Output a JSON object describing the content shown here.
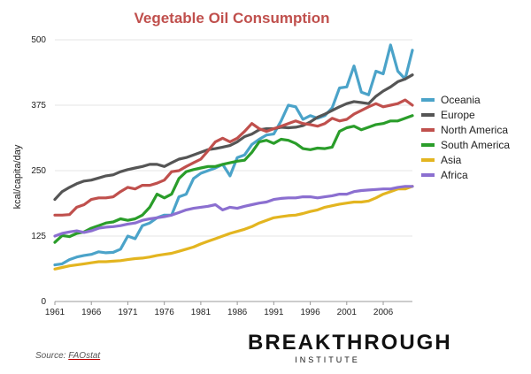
{
  "chart_data": {
    "type": "line",
    "title": "Vegetable Oil Consumption",
    "ylabel": "kcal/capita/day",
    "xlabel": "",
    "xlim": [
      1961,
      2010
    ],
    "ylim": [
      0,
      500
    ],
    "x_ticks": [
      1961,
      1966,
      1971,
      1976,
      1981,
      1986,
      1991,
      1996,
      2001,
      2006
    ],
    "y_ticks": [
      0,
      125,
      250,
      375,
      500
    ],
    "grid": true,
    "legend_position": "right",
    "x": [
      1961,
      1962,
      1963,
      1964,
      1965,
      1966,
      1967,
      1968,
      1969,
      1970,
      1971,
      1972,
      1973,
      1974,
      1975,
      1976,
      1977,
      1978,
      1979,
      1980,
      1981,
      1982,
      1983,
      1984,
      1985,
      1986,
      1987,
      1988,
      1989,
      1990,
      1991,
      1992,
      1993,
      1994,
      1995,
      1996,
      1997,
      1998,
      1999,
      2000,
      2001,
      2002,
      2003,
      2004,
      2005,
      2006,
      2007,
      2008,
      2009,
      2010
    ],
    "series": [
      {
        "name": "Oceania",
        "color": "#4ba3c9",
        "values": [
          70,
          72,
          80,
          85,
          88,
          90,
          95,
          93,
          94,
          100,
          125,
          120,
          145,
          150,
          160,
          165,
          165,
          200,
          205,
          235,
          245,
          250,
          255,
          262,
          240,
          275,
          280,
          300,
          310,
          318,
          320,
          345,
          375,
          372,
          348,
          355,
          350,
          355,
          370,
          408,
          410,
          450,
          400,
          395,
          440,
          435,
          490,
          440,
          425,
          480
        ]
      },
      {
        "name": "Europe",
        "color": "#555555",
        "values": [
          195,
          210,
          218,
          225,
          230,
          232,
          236,
          240,
          242,
          248,
          252,
          255,
          258,
          262,
          262,
          258,
          265,
          272,
          275,
          280,
          285,
          290,
          292,
          295,
          298,
          305,
          315,
          320,
          328,
          330,
          330,
          333,
          332,
          333,
          336,
          343,
          352,
          358,
          365,
          372,
          378,
          382,
          380,
          378,
          392,
          402,
          410,
          420,
          425,
          433
        ]
      },
      {
        "name": "North America",
        "color": "#c0504d",
        "values": [
          165,
          165,
          166,
          180,
          185,
          195,
          198,
          198,
          200,
          210,
          218,
          215,
          222,
          222,
          226,
          232,
          248,
          250,
          258,
          265,
          272,
          288,
          305,
          312,
          305,
          312,
          325,
          340,
          330,
          325,
          330,
          335,
          340,
          345,
          340,
          338,
          335,
          340,
          350,
          345,
          348,
          358,
          365,
          372,
          378,
          372,
          375,
          378,
          385,
          375
        ]
      },
      {
        "name": "South America",
        "color": "#2a9d2a",
        "values": [
          113,
          126,
          124,
          130,
          133,
          140,
          145,
          150,
          152,
          158,
          155,
          158,
          165,
          180,
          205,
          198,
          205,
          235,
          248,
          252,
          255,
          258,
          258,
          262,
          265,
          268,
          270,
          285,
          305,
          308,
          302,
          310,
          308,
          302,
          292,
          290,
          293,
          292,
          295,
          325,
          332,
          335,
          328,
          333,
          338,
          340,
          345,
          345,
          350,
          355
        ]
      },
      {
        "name": "Asia",
        "color": "#e3b520",
        "values": [
          62,
          65,
          68,
          70,
          72,
          74,
          76,
          76,
          77,
          78,
          80,
          82,
          83,
          85,
          88,
          90,
          92,
          96,
          100,
          104,
          110,
          115,
          120,
          125,
          130,
          134,
          138,
          143,
          150,
          155,
          160,
          162,
          164,
          165,
          168,
          172,
          175,
          180,
          183,
          186,
          188,
          190,
          190,
          192,
          198,
          205,
          210,
          215,
          215,
          220
        ]
      },
      {
        "name": "Africa",
        "color": "#8b6fd0",
        "values": [
          125,
          130,
          133,
          135,
          132,
          135,
          140,
          142,
          143,
          145,
          148,
          150,
          155,
          158,
          160,
          162,
          165,
          170,
          175,
          178,
          180,
          182,
          185,
          175,
          180,
          178,
          182,
          185,
          188,
          190,
          195,
          197,
          198,
          198,
          200,
          200,
          198,
          200,
          202,
          205,
          205,
          210,
          212,
          213,
          214,
          215,
          215,
          218,
          220,
          220
        ]
      }
    ]
  },
  "source": {
    "prefix": "Source: ",
    "link_text": "FAOstat"
  },
  "logo": {
    "main": "BREAKTHROUGH",
    "sub": "INSTITUTE"
  }
}
